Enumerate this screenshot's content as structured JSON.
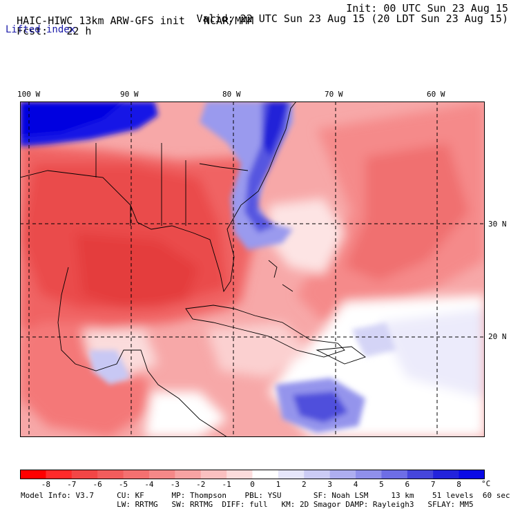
{
  "header": {
    "model_title": "HAIC-HIWC 13km ARW-GFS init",
    "org": "NCAR/MMM",
    "init": "Init: 00 UTC Sun 23 Aug 15",
    "fcst_label": "Fcst:",
    "fcst_value": "22 h",
    "valid": "Valid: 22 UTC Sun 23 Aug 15 (20 LDT Sun 23 Aug 15)",
    "field": "Lifted index"
  },
  "axes": {
    "lon_ticks": [
      "100 W",
      "90 W",
      "80 W",
      "70 W",
      "60 W"
    ],
    "lat_ticks": [
      "30 N",
      "20 N"
    ]
  },
  "colorbar": {
    "labels": [
      "-8",
      "-7",
      "-6",
      "-5",
      "-4",
      "-3",
      "-2",
      "-1",
      "0",
      "1",
      "2",
      "3",
      "4",
      "5",
      "6",
      "7",
      "8"
    ],
    "unit": "°C",
    "colors": [
      "#ff0000",
      "#ff2a2a",
      "#f24646",
      "#f25c5c",
      "#f47070",
      "#f58888",
      "#f7a3a3",
      "#fac0c0",
      "#fcdcdc",
      "#ffffff",
      "#e6e6fa",
      "#ccccf5",
      "#aeaef0",
      "#9090eb",
      "#6e6ee6",
      "#4646dc",
      "#2323dc",
      "#0a0ae6"
    ]
  },
  "model_info": {
    "line1": "Model Info: V3.7     CU: KF      MP: Thompson    PBL: YSU       SF: Noah LSM     13 km    51 levels  60 sec",
    "line2": "                     LW: RRTMG   SW: RRTMG  DIFF: full   KM: 2D Smagor DAMP: Rayleigh3   SFLAY: MM5"
  }
}
